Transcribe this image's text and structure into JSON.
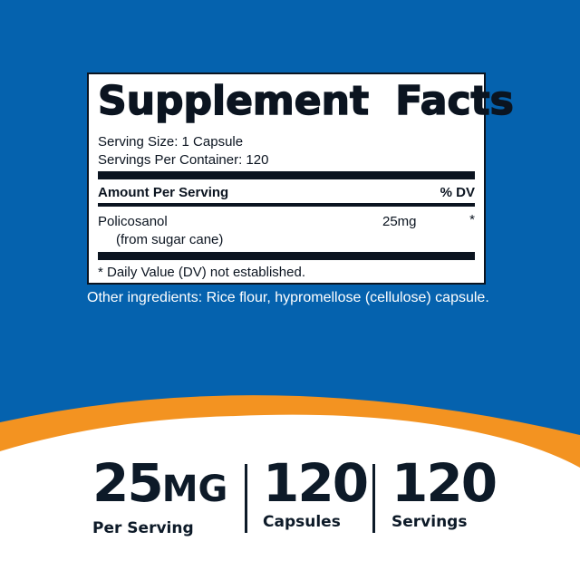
{
  "colors": {
    "background": "#0562ae",
    "accent": "#f39321",
    "text": "#0b1420",
    "base": "#ffffff"
  },
  "facts": {
    "title": "Supplement Facts",
    "serving_size": "Serving Size: 1 Capsule",
    "servings_per_container": "Servings Per Container: 120",
    "amount_header": "Amount Per Serving",
    "dv_header": "% DV",
    "ingredient": {
      "name": "Policosanol",
      "source": "(from sugar cane)",
      "amount": "25mg",
      "dv": "*"
    },
    "footnote": "* Daily Value (DV) not established."
  },
  "other_ingredients": "Other ingredients: Rice flour, hypromellose (cellulose) capsule.",
  "stats": [
    {
      "value": "25",
      "unit": "MG",
      "label": "Per Serving"
    },
    {
      "value": "120",
      "unit": "",
      "label": "Capsules"
    },
    {
      "value": "120",
      "unit": "",
      "label": "Servings"
    }
  ]
}
